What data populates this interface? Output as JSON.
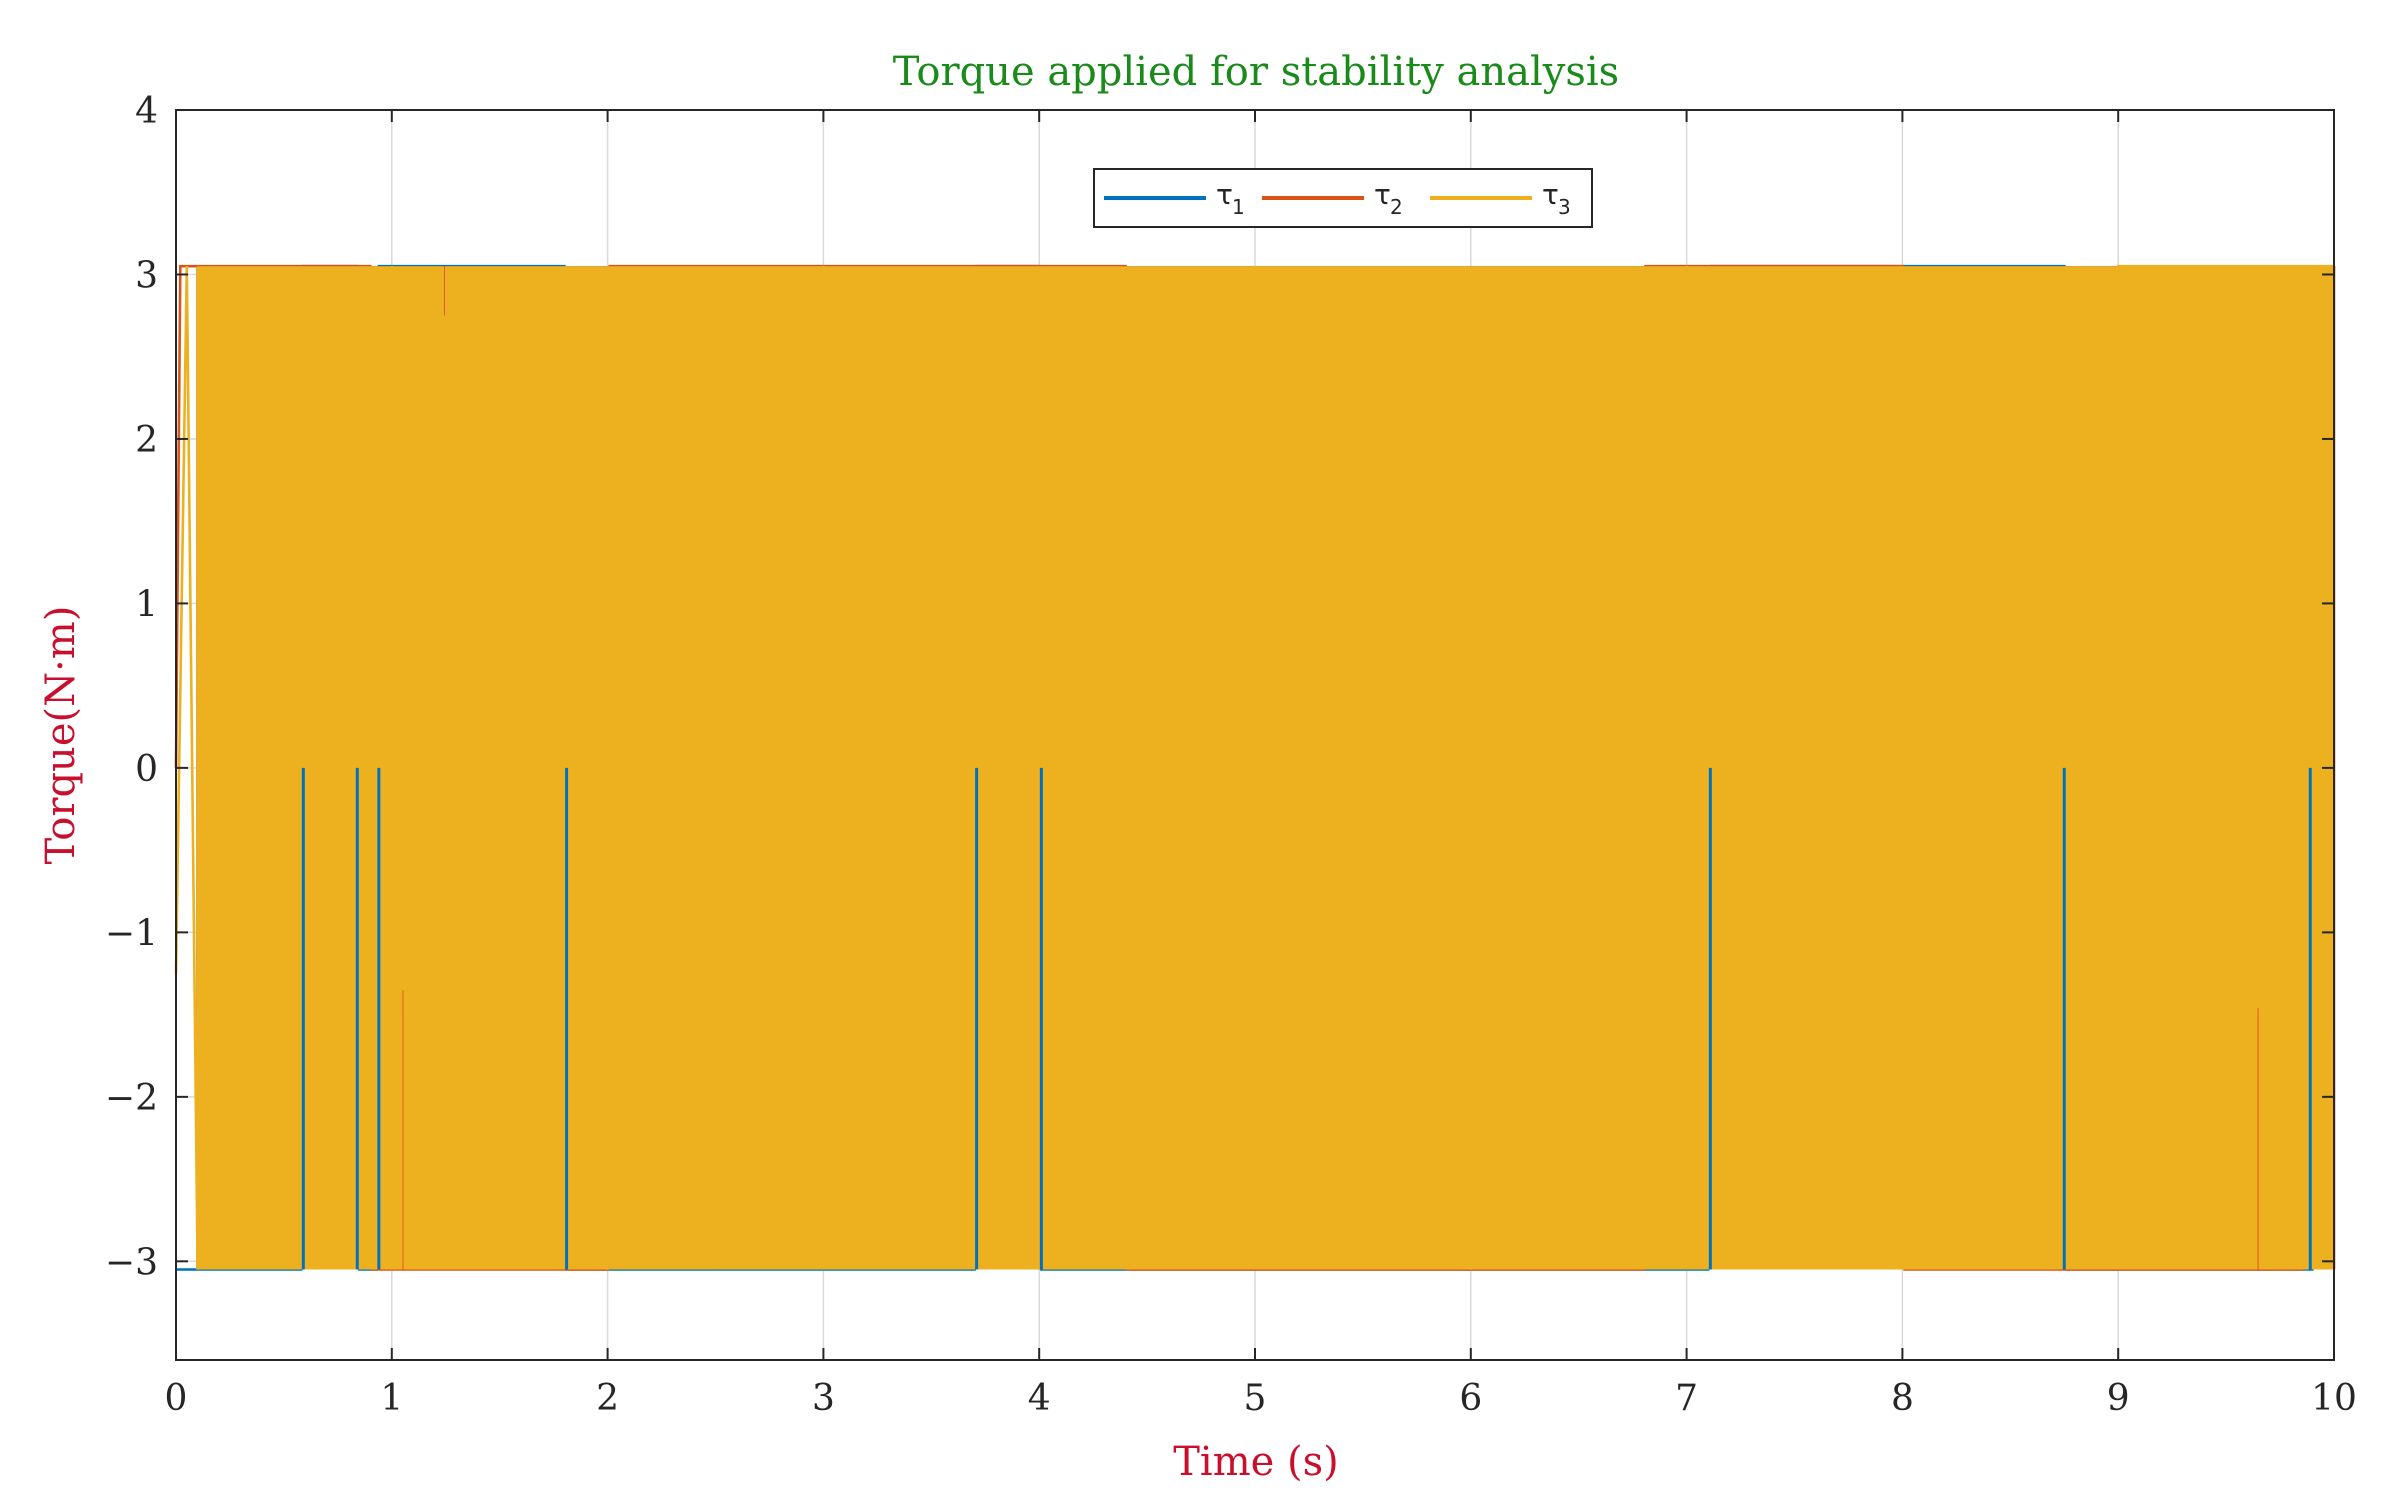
{
  "chart_data": {
    "type": "line",
    "title": "Torque applied for stability analysis",
    "xlabel": "Time (s)",
    "ylabel": "Torque(N·m)",
    "xlim": [
      0,
      10
    ],
    "ylim": [
      -3.6,
      4
    ],
    "xticks": [
      0,
      1,
      2,
      3,
      4,
      5,
      6,
      7,
      8,
      9,
      10
    ],
    "yticks": [
      -3,
      -2,
      -1,
      0,
      1,
      2,
      3
    ],
    "ytick_labels": [
      "−3",
      "−2",
      "−1",
      "0",
      "1",
      "2",
      "3"
    ],
    "grid": true,
    "legend_position": "top-center",
    "saturation_limits": [
      -3.05,
      3.05
    ],
    "series": [
      {
        "name": "τ",
        "subscript": "1",
        "color": "#0072BD",
        "description": "bang-bang torque switching between about -3.05 and +3.05",
        "x": [
          0,
          0.58,
          0.59,
          0.84,
          0.85,
          0.93,
          0.94,
          1.8,
          1.81,
          3.7,
          3.71,
          4.0,
          4.01,
          7.1,
          7.11,
          8.75,
          8.76,
          9.9,
          10
        ],
        "values": [
          -3.05,
          -3.05,
          3.05,
          3.05,
          -3.05,
          -3.05,
          3.05,
          3.05,
          -3.05,
          -3.05,
          3.05,
          3.05,
          -3.05,
          -3.05,
          3.05,
          3.05,
          -3.05,
          -3.05,
          3.05
        ]
      },
      {
        "name": "τ",
        "subscript": "2",
        "color": "#D95319",
        "description": "bang-bang torque switching between about -3.05 and +3.05",
        "x": [
          0,
          0.02,
          0.06,
          0.9,
          0.91,
          2.0,
          2.01,
          4.4,
          4.41,
          6.8,
          6.81,
          8.0,
          8.01,
          9.85,
          10
        ],
        "values": [
          0,
          3.05,
          3.05,
          3.05,
          -3.05,
          -3.05,
          3.05,
          3.05,
          -3.05,
          -3.05,
          3.05,
          3.05,
          -3.05,
          -3.05,
          3.05
        ]
      },
      {
        "name": "τ",
        "subscript": "3",
        "color": "#EDB120",
        "description": "bang-bang torque switching between about -3.05 and +3.05",
        "x": [
          0,
          0.05,
          0.1,
          1.0,
          2.0,
          3.0,
          4.0,
          5.0,
          6.0,
          7.0,
          8.0,
          9.0,
          10
        ],
        "values": [
          -1.25,
          3.05,
          -3.05,
          3.05,
          -3.05,
          3.05,
          -3.05,
          3.05,
          -3.05,
          3.05,
          -3.05,
          3.05,
          3.05
        ]
      }
    ]
  }
}
